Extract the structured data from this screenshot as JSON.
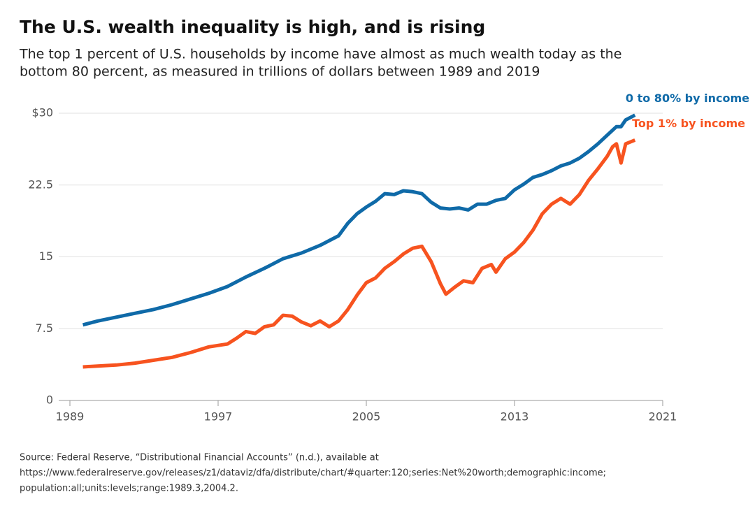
{
  "chart_data": {
    "type": "line",
    "title": "The U.S. wealth inequality is high, and is rising",
    "subtitle": [
      "The top 1 percent of U.S. households by income have almost as much wealth today as the",
      "bottom 80 percent, as measured in trillions of dollars between 1989 and 2019"
    ],
    "source": [
      "Source: Federal Reserve, “Distributional Financial Accounts” (n.d.), available at",
      "https://www.federalreserve.gov/releases/z1/dataviz/dfa/distribute/chart/#quarter:120;series:Net%20worth;demographic:income;",
      "population:all;units:levels;range:1989.3,2004.2."
    ],
    "xlim": [
      1989,
      2021
    ],
    "xticks": [
      1989,
      1997,
      2005,
      2013,
      2021
    ],
    "ylim": [
      0,
      30
    ],
    "yticks": [
      0,
      7.5,
      15,
      22.5,
      {
        "value": 30,
        "label": "$30"
      }
    ],
    "grid": true,
    "series": [
      {
        "name": "0 to 80% by income",
        "color": "#0f6aa8",
        "x": [
          1989.7,
          1990.5,
          1991.5,
          1992.5,
          1993.5,
          1994.5,
          1995.5,
          1996.5,
          1997.5,
          1998.5,
          1999.5,
          2000.5,
          2001.5,
          2002.5,
          2003.5,
          2004.0,
          2004.5,
          2005.0,
          2005.5,
          2006.0,
          2006.5,
          2007.0,
          2007.5,
          2008.0,
          2008.5,
          2009.0,
          2009.5,
          2010.0,
          2010.5,
          2011.0,
          2011.5,
          2012.0,
          2012.5,
          2013.0,
          2013.5,
          2014.0,
          2014.5,
          2015.0,
          2015.5,
          2016.0,
          2016.5,
          2017.0,
          2017.5,
          2018.0,
          2018.5,
          2018.75,
          2019.0,
          2019.5
        ],
        "values": [
          7.9,
          8.3,
          8.7,
          9.1,
          9.5,
          10.0,
          10.6,
          11.2,
          11.9,
          12.9,
          13.8,
          14.8,
          15.4,
          16.2,
          17.2,
          18.5,
          19.5,
          20.2,
          20.8,
          21.6,
          21.5,
          21.9,
          21.8,
          21.6,
          20.7,
          20.1,
          20.0,
          20.1,
          19.9,
          20.5,
          20.5,
          20.9,
          21.1,
          22.0,
          22.6,
          23.3,
          23.6,
          24.0,
          24.5,
          24.8,
          25.3,
          26.0,
          26.8,
          27.7,
          28.6,
          28.6,
          29.3,
          29.8
        ]
      },
      {
        "name": "Top 1% by income",
        "color": "#f7531f",
        "x": [
          1989.7,
          1990.5,
          1991.5,
          1992.5,
          1993.5,
          1994.5,
          1995.5,
          1996.5,
          1997.5,
          1998.0,
          1998.5,
          1999.0,
          1999.5,
          2000.0,
          2000.5,
          2001.0,
          2001.5,
          2002.0,
          2002.5,
          2003.0,
          2003.5,
          2004.0,
          2004.5,
          2005.0,
          2005.5,
          2006.0,
          2006.5,
          2007.0,
          2007.5,
          2008.0,
          2008.5,
          2009.0,
          2009.3,
          2009.75,
          2010.25,
          2010.75,
          2011.25,
          2011.75,
          2012.0,
          2012.5,
          2013.0,
          2013.5,
          2014.0,
          2014.5,
          2015.0,
          2015.5,
          2016.0,
          2016.5,
          2017.0,
          2017.5,
          2018.0,
          2018.3,
          2018.5,
          2018.75,
          2019.0,
          2019.5
        ],
        "values": [
          3.5,
          3.6,
          3.7,
          3.9,
          4.2,
          4.5,
          5.0,
          5.6,
          5.9,
          6.5,
          7.2,
          7.0,
          7.7,
          7.9,
          8.9,
          8.8,
          8.2,
          7.8,
          8.3,
          7.7,
          8.3,
          9.5,
          11.0,
          12.3,
          12.8,
          13.8,
          14.5,
          15.3,
          15.9,
          16.1,
          14.5,
          12.2,
          11.1,
          11.8,
          12.5,
          12.3,
          13.8,
          14.2,
          13.4,
          14.8,
          15.5,
          16.5,
          17.8,
          19.5,
          20.5,
          21.1,
          20.5,
          21.5,
          23.0,
          24.2,
          25.5,
          26.5,
          26.8,
          24.8,
          26.8,
          27.2
        ]
      }
    ]
  }
}
